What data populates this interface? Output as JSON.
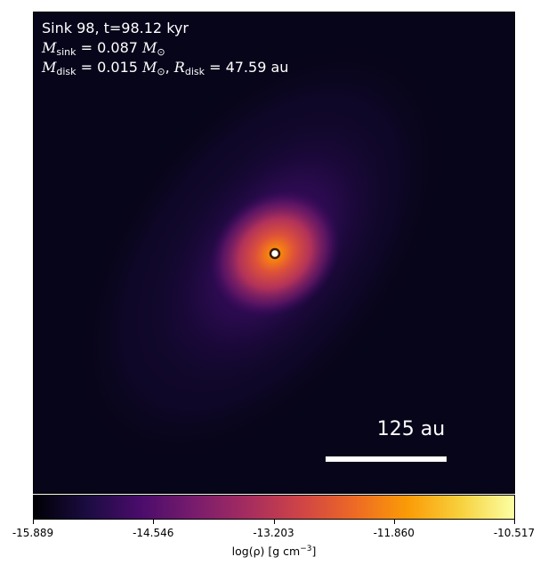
{
  "chart_data": {
    "type": "heatmap",
    "colormap": "inferno",
    "title_line1": "Sink 98, t=98.12 kyr",
    "mass_sink": {
      "symbol": "M",
      "sub": "sink",
      "value": "= 0.087",
      "unit": "M",
      "unit_sub": "⊙"
    },
    "mass_disk": {
      "symbol": "M",
      "sub": "disk",
      "value": "= 0.015",
      "unit": "M",
      "unit_sub": "⊙"
    },
    "radius_disk": {
      "symbol": "R",
      "sub": "disk",
      "value": "= 47.59 au"
    },
    "scale_bar_label": "125 au",
    "scale_bar_au": 125,
    "colorbar": {
      "label_prefix": "log(ρ) [g cm",
      "label_sup": "−3",
      "label_suffix": "]",
      "min": -15.889,
      "max": -10.517,
      "ticks": [
        "-15.889",
        "-14.546",
        "-13.203",
        "-11.860",
        "-10.517"
      ]
    },
    "sink_marker": "sink particle (ring marker at center)"
  }
}
